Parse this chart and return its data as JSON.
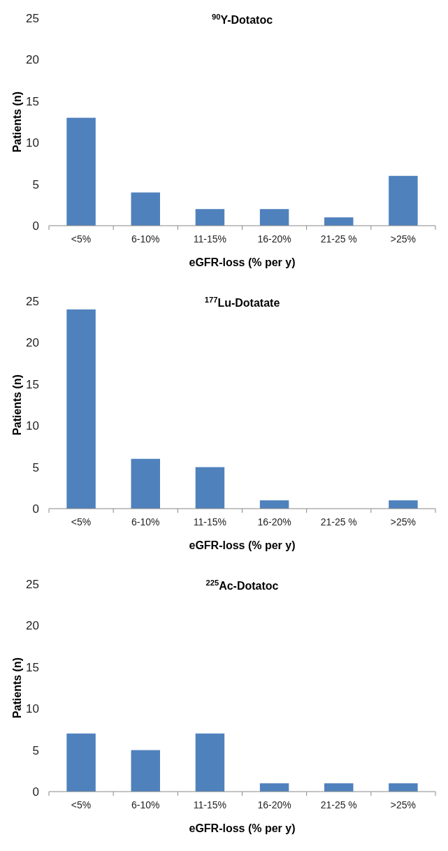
{
  "chart_data": [
    {
      "type": "bar",
      "title": "$^{90}$Y-Dotatoc",
      "xlabel": "eGFR-loss (% per y)",
      "ylabel": "Patients (n)",
      "categories": [
        "<5%",
        "6-10%",
        "11-15%",
        "16-20%",
        "21-25 %",
        ">25%"
      ],
      "values": [
        13,
        4,
        2,
        2,
        1,
        6
      ],
      "color": "#4f81bd",
      "ylim": [
        0,
        25
      ],
      "yticks": [
        0,
        5,
        10,
        15,
        20,
        25
      ]
    },
    {
      "type": "bar",
      "title": "$^{177}$Lu-Dotatate",
      "xlabel": "eGFR-loss (% per y)",
      "ylabel": "Patients (n)",
      "categories": [
        "<5%",
        "6-10%",
        "11-15%",
        "16-20%",
        "21-25 %",
        ">25%"
      ],
      "values": [
        24,
        6,
        5,
        1,
        0,
        1
      ],
      "color": "#4f81bd",
      "ylim": [
        0,
        25
      ],
      "yticks": [
        0,
        5,
        10,
        15,
        20,
        25
      ]
    },
    {
      "type": "bar",
      "title": "$^{225}$Ac-Dotatoc",
      "xlabel": "eGFR-loss (% per y)",
      "ylabel": "Patients (n)",
      "categories": [
        "<5%",
        "6-10%",
        "11-15%",
        "16-20%",
        "21-25 %",
        ">25%"
      ],
      "values": [
        7,
        5,
        7,
        1,
        1,
        1
      ],
      "color": "#4f81bd",
      "ylim": [
        0,
        25
      ],
      "yticks": [
        0,
        5,
        10,
        15,
        20,
        25
      ]
    }
  ]
}
